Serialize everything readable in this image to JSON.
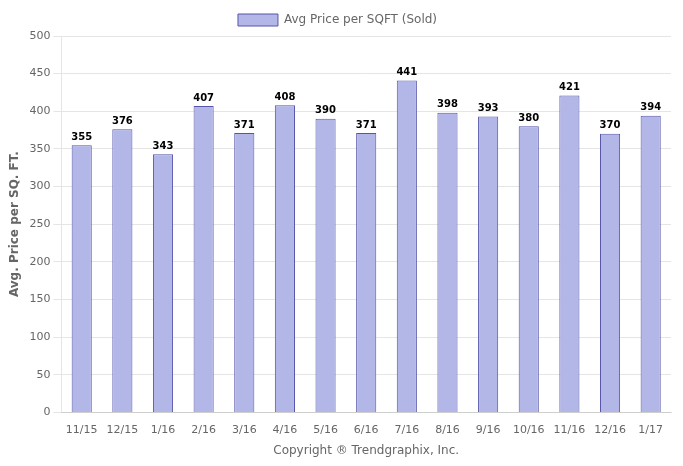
{
  "chart_data": {
    "type": "bar",
    "categories": [
      "11/15",
      "12/15",
      "1/16",
      "2/16",
      "3/16",
      "4/16",
      "5/16",
      "6/16",
      "7/16",
      "8/16",
      "9/16",
      "10/16",
      "11/16",
      "12/16",
      "1/17"
    ],
    "series": [
      {
        "name": "Avg Price per SQFT (Sold)",
        "color": "#b3b7e8",
        "values": [
          355,
          376,
          343,
          407,
          371,
          408,
          390,
          371,
          441,
          398,
          393,
          380,
          421,
          370,
          394
        ]
      }
    ],
    "xlabel": "Copyright ® Trendgraphix, Inc.",
    "ylabel": "Avg. Price per SQ. FT.",
    "ylim": [
      0,
      500
    ],
    "yticks": [
      0,
      50,
      100,
      150,
      200,
      250,
      300,
      350,
      400,
      450,
      500
    ],
    "grid": true,
    "legend": "top",
    "data_labels": true
  }
}
